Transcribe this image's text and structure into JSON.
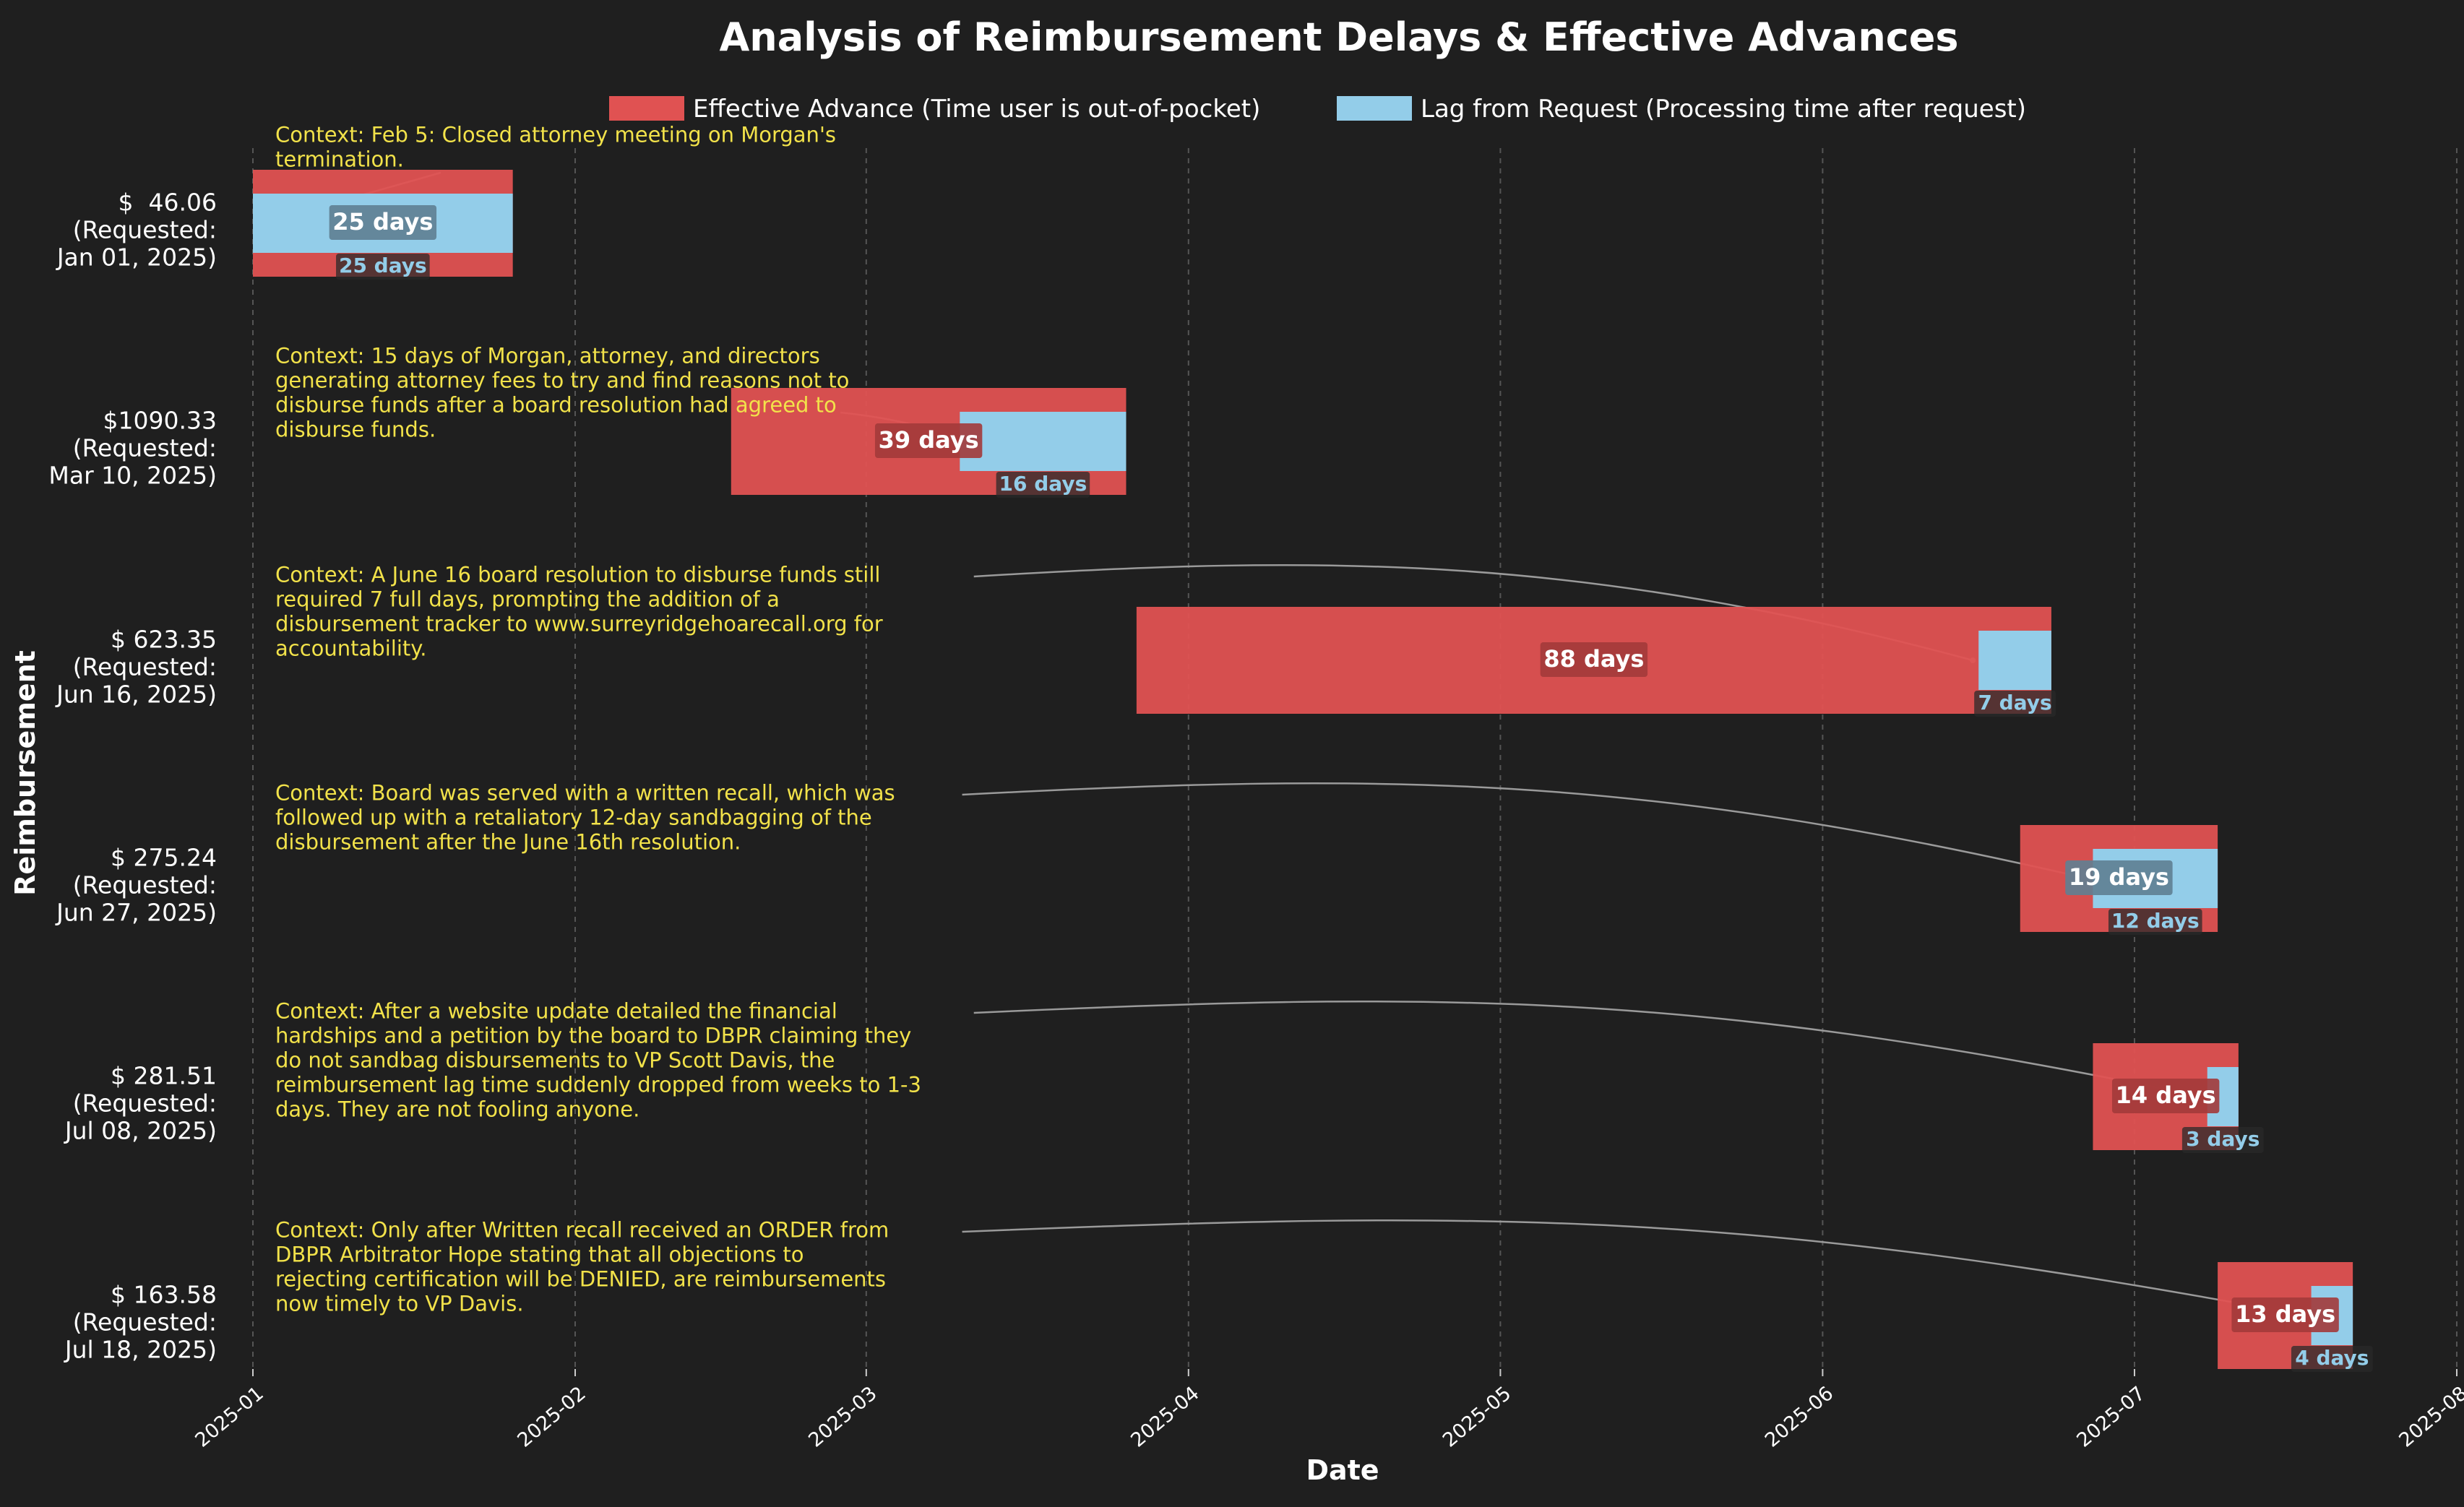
{
  "chart_data": {
    "type": "bar",
    "title": "Analysis of Reimbursement Delays & Effective Advances",
    "xlabel": "Date",
    "ylabel": "Reimbursement",
    "xlim": [
      "2025-01-01",
      "2025-08-01"
    ],
    "x_ticks": [
      "2025-01",
      "2025-02",
      "2025-03",
      "2025-04",
      "2025-05",
      "2025-06",
      "2025-07",
      "2025-08"
    ],
    "grid": "vertical dashed",
    "legend_position": "top-center",
    "legend": [
      {
        "label": "Effective Advance (Time user is out-of-pocket)",
        "color": "#e05252"
      },
      {
        "label": "Lag from Request (Processing time after request)",
        "color": "#93cde9"
      }
    ],
    "series": [
      {
        "amount_label": "$  46.06",
        "requested_label": "(Requested:",
        "date_label": "Jan 01, 2025)",
        "advance_start": "2025-01-01",
        "advance_end": "2025-01-26",
        "advance_days": 25,
        "advance_label": "25 days",
        "lag_start": "2025-01-01",
        "lag_end": "2025-01-26",
        "lag_days": 25,
        "lag_label": "25 days",
        "context": "Context: Feb 5: Closed attorney meeting on Morgan's termination.",
        "context_lines": [
          "Context: Feb 5: Closed attorney meeting on Morgan's",
          "termination."
        ]
      },
      {
        "amount_label": "$1090.33",
        "requested_label": "(Requested:",
        "date_label": "Mar 10, 2025)",
        "advance_start": "2025-02-16",
        "advance_end": "2025-03-26",
        "advance_days": 39,
        "advance_label": "39 days",
        "lag_start": "2025-03-10",
        "lag_end": "2025-03-26",
        "lag_days": 16,
        "lag_label": "16 days",
        "context": "Context: 15 days of Morgan, attorney, and directors generating attorney fees to try and find reasons not to disburse funds after a board resolution had agreed to disburse funds.",
        "context_lines": [
          "Context: 15 days of Morgan, attorney, and directors",
          "generating attorney fees to try and find reasons not to",
          "disburse funds after a board resolution had agreed to",
          "disburse funds."
        ]
      },
      {
        "amount_label": "$ 623.35",
        "requested_label": "(Requested:",
        "date_label": "Jun 16, 2025)",
        "advance_start": "2025-03-27",
        "advance_end": "2025-06-23",
        "advance_days": 88,
        "advance_label": "88 days",
        "lag_start": "2025-06-16",
        "lag_end": "2025-06-23",
        "lag_days": 7,
        "lag_label": "7 days",
        "context": "Context: A June 16 board resolution to disburse funds still required 7 full days, prompting the addition of a disbursement tracker to www.surreyridgehoarecall.org for accountability.",
        "context_lines": [
          "Context: A June 16 board resolution to disburse funds still",
          "required 7 full days, prompting the addition of a",
          "disbursement tracker to www.surreyridgehoarecall.org for",
          "accountability."
        ]
      },
      {
        "amount_label": "$ 275.24",
        "requested_label": "(Requested:",
        "date_label": "Jun 27, 2025)",
        "advance_start": "2025-06-20",
        "advance_end": "2025-07-09",
        "advance_days": 19,
        "advance_label": "19 days",
        "lag_start": "2025-06-27",
        "lag_end": "2025-07-09",
        "lag_days": 12,
        "lag_label": "12 days",
        "context": "Context: Board was served with a written recall, which was followed up with a retaliatory 12-day sandbagging of the disbursement after the June 16th resolution.",
        "context_lines": [
          "Context: Board was served with a written recall, which was",
          "followed up with a retaliatory 12-day sandbagging of the",
          "disbursement after the June 16th resolution."
        ]
      },
      {
        "amount_label": "$ 281.51",
        "requested_label": "(Requested:",
        "date_label": "Jul 08, 2025)",
        "advance_start": "2025-06-27",
        "advance_end": "2025-07-11",
        "advance_days": 14,
        "advance_label": "14 days",
        "lag_start": "2025-07-08",
        "lag_end": "2025-07-11",
        "lag_days": 3,
        "lag_label": "3 days",
        "context": "Context: After a website update detailed the financial hardships and a petition by the board to DBPR claiming they do not sandbag disbursements to VP Scott Davis, the reimbursement lag time suddenly dropped from weeks to 1-3 days. They are not fooling anyone.",
        "context_lines": [
          "Context: After a website update detailed the financial",
          "hardships and a petition by the board to DBPR claiming they",
          "do not sandbag disbursements to VP Scott Davis, the",
          "reimbursement lag time suddenly dropped from weeks to 1-3",
          "days. They are not fooling anyone."
        ]
      },
      {
        "amount_label": "$ 163.58",
        "requested_label": "(Requested:",
        "date_label": "Jul 18, 2025)",
        "advance_start": "2025-07-09",
        "advance_end": "2025-07-22",
        "advance_days": 13,
        "advance_label": "13 days",
        "lag_start": "2025-07-18",
        "lag_end": "2025-07-22",
        "lag_days": 4,
        "lag_label": "4 days",
        "context": "Context: Only after Written recall received an ORDER from DBPR Arbitrator Hope stating that all objections to rejecting certification will be DENIED, are reimbursements now timely to VP Davis.",
        "context_lines": [
          "Context: Only after Written recall received an ORDER from",
          "DBPR Arbitrator Hope stating that all objections to",
          "rejecting certification will be DENIED, are reimbursements",
          "now timely to VP Davis."
        ]
      }
    ]
  },
  "colors": {
    "background": "#1f1f1f",
    "advance": "#e05252",
    "lag": "#93cde9",
    "context_text": "#f2e24a",
    "text": "#ffffff",
    "grid": "#555555",
    "arrow": "#9a9a9a"
  }
}
